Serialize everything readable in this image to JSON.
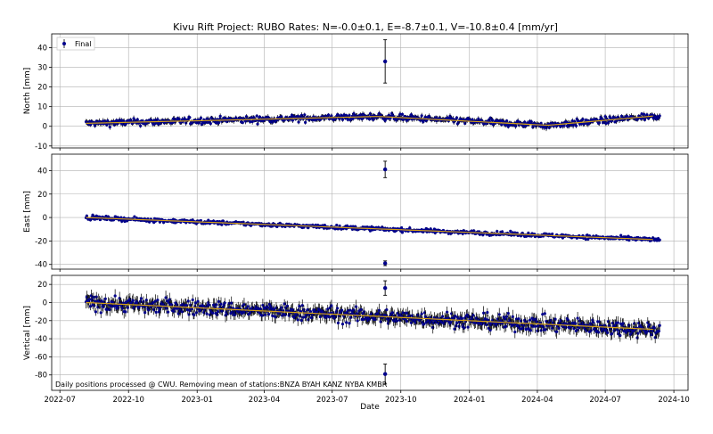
{
  "title": "Kivu Rift Project: RUBO  Rates: N=-0.0±0.1, E=-8.7±0.1, V=-10.8±0.4 [mm/yr]",
  "footnote": "Daily positions processed @ CWU. Removing mean of stations:BNZA BYAH KANZ NYBA KMBR",
  "xlabel": "Date",
  "legend_label": "Final",
  "colors": {
    "marker": "#00008b",
    "errorbar": "#000000",
    "trend": "#d4a017",
    "grid": "#b0b0b0"
  },
  "chart_data": [
    {
      "type": "scatter",
      "ylabel": "North [mm]",
      "ylim": [
        -11,
        47
      ],
      "yticks": [
        -10,
        0,
        10,
        20,
        30,
        40
      ],
      "x_range": [
        "2022-08-05",
        "2024-09-12"
      ],
      "outliers": [
        {
          "x": "2023-09-10",
          "y": 33,
          "err": 11
        }
      ],
      "summary": {
        "start_value": 1.5,
        "peak_date": "2023-09-01",
        "peak_value": 5,
        "end_value": 5.5,
        "typical_error": 1.2
      },
      "legend": {
        "label": "Final",
        "position": "top-left"
      }
    },
    {
      "type": "scatter",
      "ylabel": "East [mm]",
      "ylim": [
        -44,
        54
      ],
      "yticks": [
        -40,
        -20,
        0,
        20,
        40
      ],
      "x_range": [
        "2022-08-05",
        "2024-09-12"
      ],
      "outliers": [
        {
          "x": "2023-09-10",
          "y": 41,
          "err": 7
        },
        {
          "x": "2023-09-10",
          "y": -39,
          "err": 2
        }
      ],
      "summary": {
        "start_value": 0,
        "end_value": -19,
        "typical_error": 1.2
      }
    },
    {
      "type": "scatter",
      "ylabel": "Vertical [mm]",
      "ylim": [
        -97,
        30
      ],
      "yticks": [
        -80,
        -60,
        -40,
        -20,
        0,
        20
      ],
      "x_range": [
        "2022-08-05",
        "2024-09-12"
      ],
      "outliers": [
        {
          "x": "2023-09-10",
          "y": 16,
          "err": 8
        },
        {
          "x": "2023-09-10",
          "y": -79,
          "err": 11
        }
      ],
      "summary": {
        "start_value": 0,
        "end_value": -30,
        "typical_error": 6
      }
    }
  ],
  "x_axis": {
    "ticks": [
      "2022-07",
      "2022-10",
      "2023-01",
      "2023-04",
      "2023-07",
      "2023-10",
      "2024-01",
      "2024-04",
      "2024-07",
      "2024-10"
    ]
  }
}
